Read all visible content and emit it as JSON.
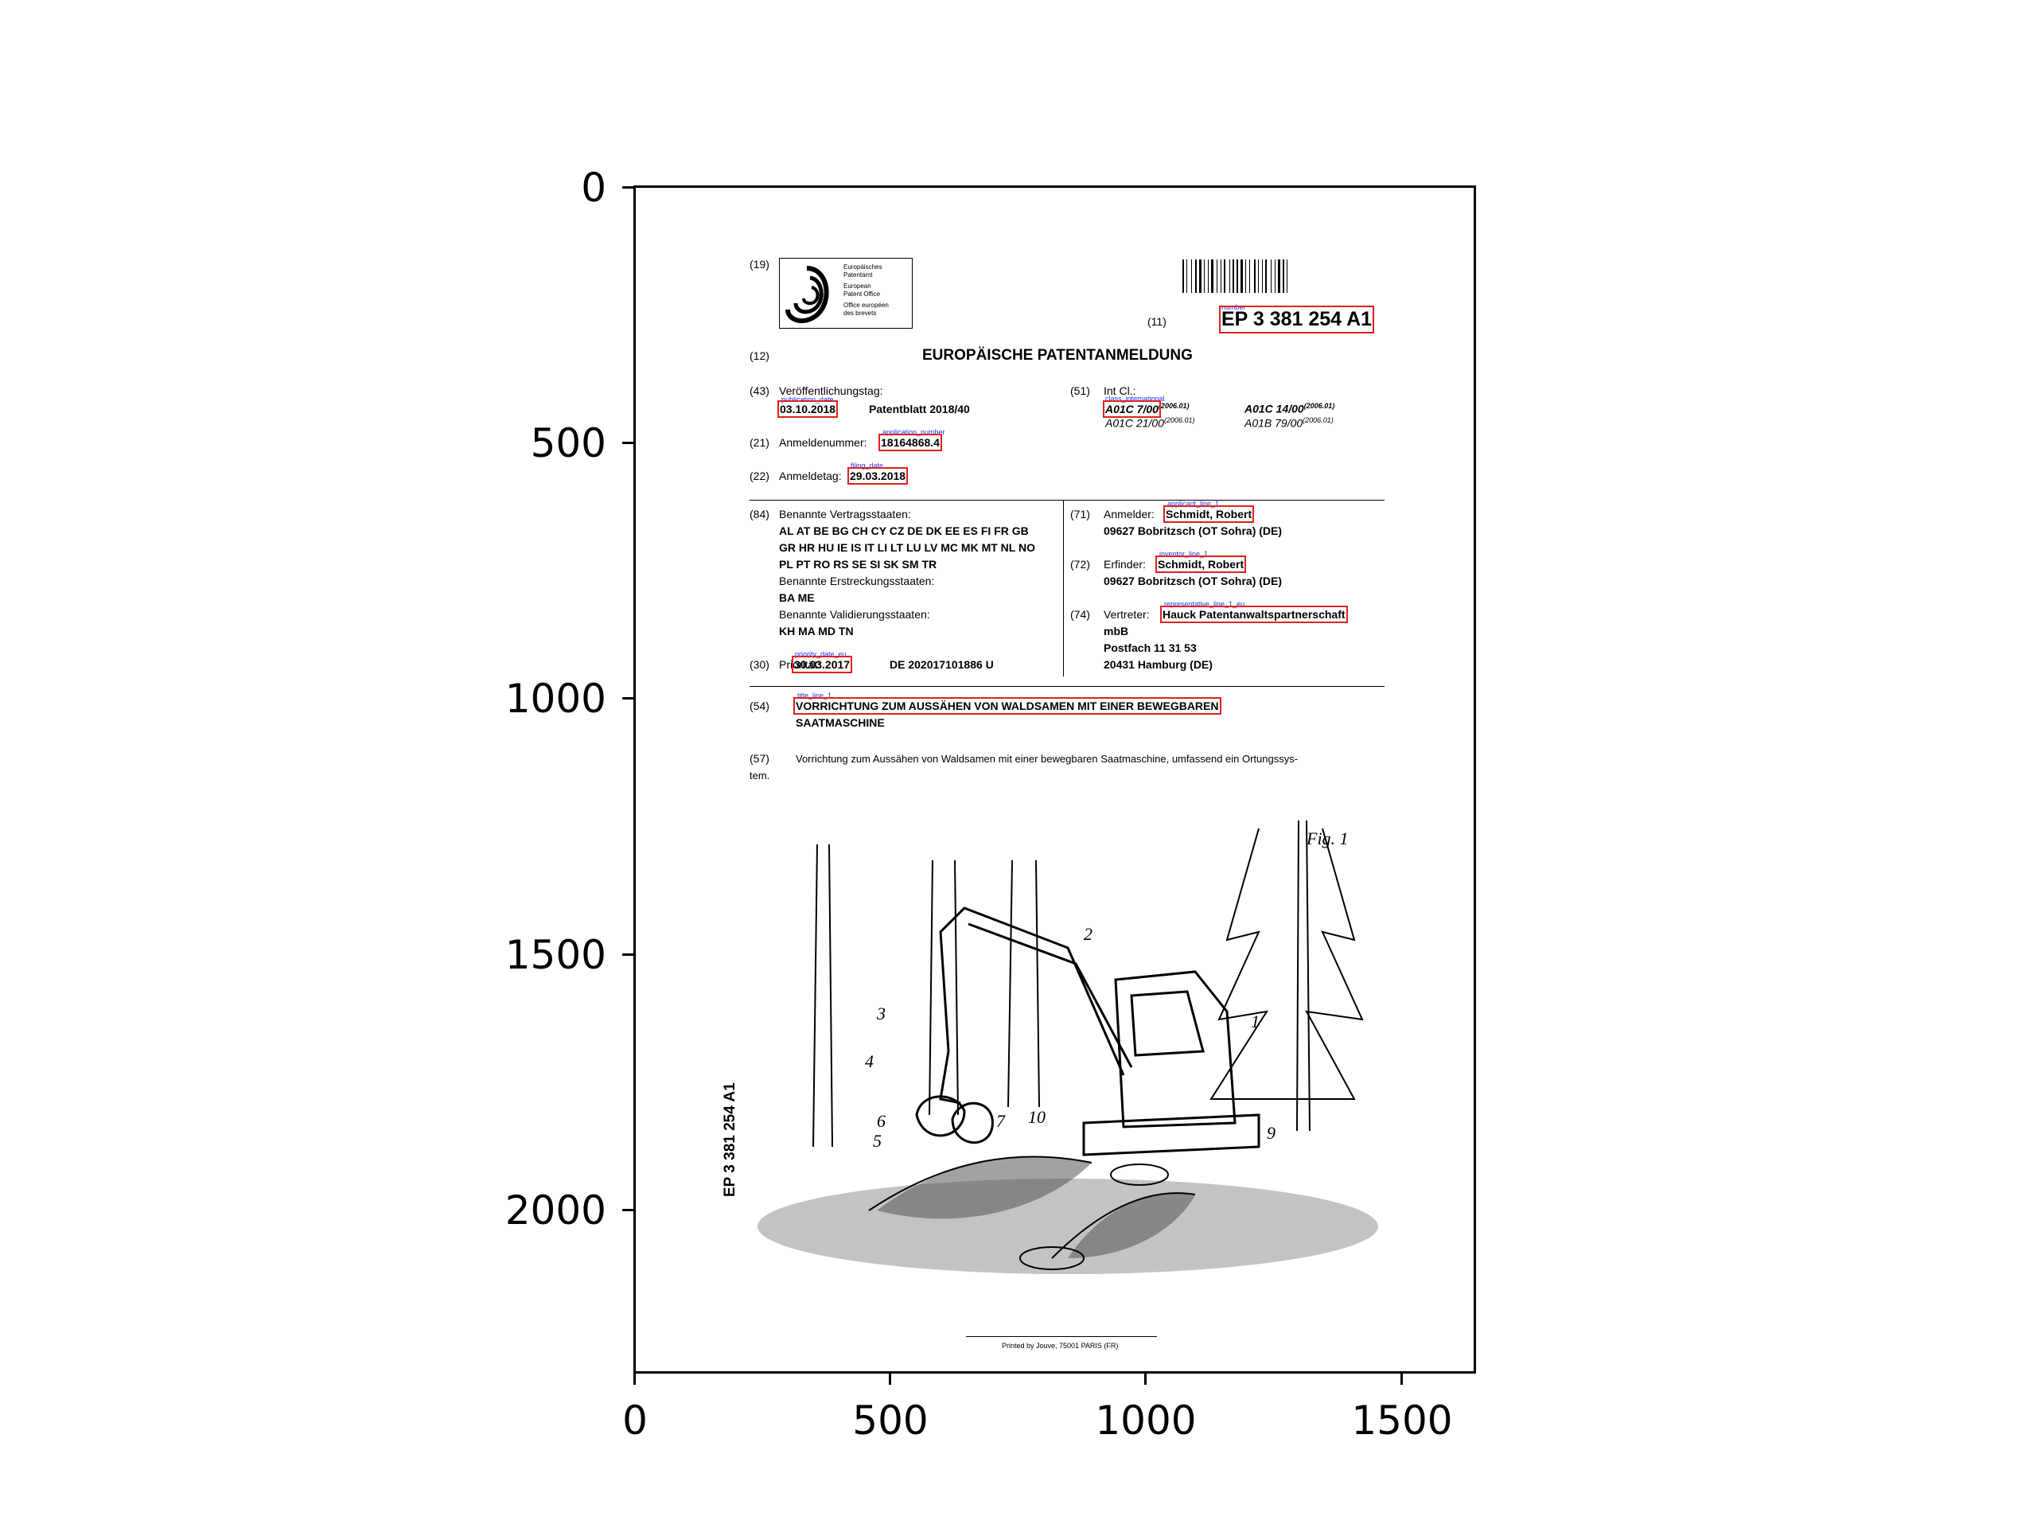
{
  "axes": {
    "y_ticks": [
      "0",
      "500",
      "1000",
      "1500",
      "2000"
    ],
    "x_ticks": [
      "0",
      "500",
      "1000",
      "1500"
    ]
  },
  "header": {
    "inid_19": "(19)",
    "logo_lines": [
      "Europäisches",
      "Patentamt",
      "European",
      "Patent Office",
      "Office européen",
      "des brevets"
    ],
    "inid_11": "(11)",
    "number_label": "number",
    "publication_number": "EP 3 381 254 A1",
    "inid_12": "(12)",
    "doc_type": "EUROPÄISCHE PATENTANMELDUNG"
  },
  "bib": {
    "inid_43": "(43)",
    "pub_date_label": "Veröffentlichungstag:",
    "pub_date_box_label": "publication_date",
    "pub_date": "03.10.2018",
    "patentblatt": "Patentblatt 2018/40",
    "inid_21": "(21)",
    "app_number_label": "Anmeldenummer:",
    "app_number_box_label": "application_number",
    "app_number": "18164868.4",
    "inid_22": "(22)",
    "filing_label": "Anmeldetag:",
    "filing_box_label": "filing_date",
    "filing_date": "29.03.2018",
    "inid_51": "(51)",
    "int_cl_label": "Int Cl.:",
    "class_box_label": "class_international",
    "class_1": "A01C 7/00",
    "class_1_ver": "(2006.01)",
    "class_2": "A01C 14/00",
    "class_2_ver": "(2006.01)",
    "class_3": "A01C 21/00",
    "class_3_ver": "(2006.01)",
    "class_4": "A01B 79/00",
    "class_4_ver": "(2006.01)"
  },
  "states": {
    "inid_84": "(84)",
    "label": "Benannte Vertragsstaaten:",
    "line1": "AL AT BE BG CH CY CZ DE DK EE ES FI FR GB",
    "line2": "GR HR HU IE IS IT LI LT LU LV MC MK MT NL NO",
    "line3": "PL PT RO RS SE SI SK SM TR",
    "ext_label": "Benannte Erstreckungsstaaten:",
    "ext": "BA ME",
    "val_label": "Benannte Validierungsstaaten:",
    "val": "KH MA MD TN"
  },
  "priority": {
    "inid_30": "(30)",
    "label": "Priorität:",
    "box_label": "priority_date_eu",
    "date": "30.03.2017",
    "number": "DE 202017101886 U"
  },
  "parties": {
    "inid_71": "(71)",
    "applicant_label": "Anmelder:",
    "applicant_box_label": "applicant_line_1",
    "applicant": "Schmidt, Robert",
    "applicant_addr": "09627 Bobritzsch (OT Sohra) (DE)",
    "inid_72": "(72)",
    "inventor_label": "Erfinder:",
    "inventor_box_label": "inventor_line_1",
    "inventor": "Schmidt, Robert",
    "inventor_addr": "09627 Bobritzsch (OT Sohra) (DE)",
    "inid_74": "(74)",
    "rep_label": "Vertreter:",
    "rep_box_label": "representative_line_1_eu",
    "rep": "Hauck Patentanwaltspartnerschaft",
    "rep_2": "mbB",
    "rep_3": "Postfach 11 31 53",
    "rep_4": "20431 Hamburg (DE)"
  },
  "title": {
    "inid_54": "(54)",
    "box_label": "title_line_1",
    "line1": "VORRICHTUNG ZUM AUSSÄHEN VON WALDSAMEN MIT EINER BEWEGBAREN",
    "line2": "SAATMASCHINE"
  },
  "abstract": {
    "inid_57": "(57)",
    "line1": "Vorrichtung zum Aussähen von Waldsamen mit einer bewegbaren Saatmaschine, umfassend ein Ortungssys-",
    "line2": "tem."
  },
  "figure": {
    "fig_label": "Fig. 1",
    "refs": [
      "1",
      "2",
      "3",
      "4",
      "5",
      "6",
      "7",
      "9",
      "10"
    ]
  },
  "side_number": "EP 3 381 254 A1",
  "footer": "Printed by Jouve, 75001 PARIS (FR)"
}
